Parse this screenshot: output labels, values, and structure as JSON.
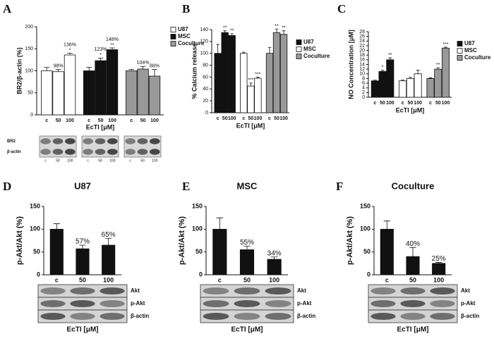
{
  "chart_data": [
    {
      "type": "bar",
      "label": "A",
      "ylabel": "BR2/β-actin (%)",
      "xlabel": "EcTI [μM]",
      "categories": [
        "c",
        "50",
        "100"
      ],
      "ylim": [
        0,
        200
      ],
      "yticks": [
        0,
        50,
        100,
        150,
        200
      ],
      "legend": "right",
      "series": [
        {
          "name": "U87",
          "color": "#ffffff",
          "values": [
            100,
            98,
            136
          ],
          "errors": [
            8,
            5,
            4
          ],
          "value_labels": [
            null,
            "98%",
            "136%"
          ],
          "markers": [
            null,
            null,
            "*"
          ]
        },
        {
          "name": "MSC",
          "color": "#111111",
          "values": [
            100,
            123,
            148
          ],
          "errors": [
            8,
            6,
            4
          ],
          "value_labels": [
            null,
            "123%",
            "148%"
          ],
          "markers": [
            null,
            "*",
            "**"
          ]
        },
        {
          "name": "Coculture",
          "color": "#999999",
          "values": [
            100,
            104,
            88
          ],
          "errors": [
            3,
            6,
            15
          ],
          "value_labels": [
            null,
            "104%",
            "88%"
          ]
        }
      ],
      "blot_labels": [
        "BR2",
        "β-actin"
      ]
    },
    {
      "type": "bar",
      "label": "B",
      "ylabel": "% Calcium release",
      "xlabel": "EcTI [μM]",
      "categories": [
        "c",
        "50",
        "100"
      ],
      "ylim": [
        0,
        140
      ],
      "yticks": [
        0,
        20,
        40,
        60,
        80,
        100,
        120,
        140
      ],
      "legend": "right",
      "series": [
        {
          "name": "U87",
          "color": "#111111",
          "values": [
            100,
            135,
            130
          ],
          "errors": [
            15,
            3,
            3
          ],
          "markers": [
            null,
            "**",
            "**"
          ]
        },
        {
          "name": "MSC",
          "color": "#ffffff",
          "values": [
            100,
            45,
            58
          ],
          "errors": [
            2,
            5,
            2
          ],
          "markers": [
            null,
            "***",
            "***"
          ]
        },
        {
          "name": "Coculture",
          "color": "#999999",
          "values": [
            100,
            135,
            132
          ],
          "errors": [
            10,
            6,
            6
          ],
          "markers": [
            null,
            "**",
            "**"
          ]
        }
      ]
    },
    {
      "type": "bar",
      "label": "C",
      "ylabel": "NO Concentration [μM]",
      "xlabel": "EcTI [μM]",
      "categories": [
        "c",
        "50",
        "100"
      ],
      "ylim": [
        0,
        28
      ],
      "yticks": [
        0,
        2,
        4,
        6,
        8,
        10,
        12,
        14,
        16,
        18,
        20,
        22,
        24,
        26,
        28
      ],
      "legend": "right",
      "series": [
        {
          "name": "U87",
          "color": "#111111",
          "values": [
            7,
            11,
            16
          ],
          "errors": [
            0.3,
            0.5,
            0.8
          ],
          "markers": [
            null,
            "*",
            "**"
          ]
        },
        {
          "name": "MSC",
          "color": "#ffffff",
          "values": [
            7,
            8,
            10
          ],
          "errors": [
            0.3,
            0.5,
            1.5
          ]
        },
        {
          "name": "Coculture",
          "color": "#999999",
          "values": [
            8,
            12,
            21
          ],
          "errors": [
            0.3,
            0.6,
            0.4
          ],
          "markers": [
            null,
            "**",
            "***"
          ]
        }
      ]
    },
    {
      "type": "bar",
      "label": "D",
      "title": "U87",
      "ylabel": "p-Akt/Akt (%)",
      "xlabel": "EcTI [μM]",
      "categories": [
        "c",
        "50",
        "100"
      ],
      "values": [
        100,
        57,
        65
      ],
      "errors": [
        12,
        8,
        15
      ],
      "value_labels": [
        null,
        "57%",
        "65%"
      ],
      "color": "#111111",
      "ylim": [
        0,
        150
      ],
      "yticks": [
        0,
        50,
        100,
        150
      ],
      "blot_labels": [
        "Akt",
        "p-Akt",
        "β-actin"
      ]
    },
    {
      "type": "bar",
      "label": "E",
      "title": "MSC",
      "ylabel": "p-Akt/Akt (%)",
      "xlabel": "EcTI [μM]",
      "categories": [
        "c",
        "50",
        "100"
      ],
      "values": [
        100,
        55,
        34
      ],
      "errors": [
        25,
        8,
        5
      ],
      "value_labels": [
        null,
        "55%",
        "34%"
      ],
      "color": "#111111",
      "ylim": [
        0,
        150
      ],
      "yticks": [
        0,
        50,
        100,
        150
      ],
      "blot_labels": [
        "Akt",
        "p-Akt",
        "β-actin"
      ]
    },
    {
      "type": "bar",
      "label": "F",
      "title": "Coculture",
      "ylabel": "p-Akt/Akt (%)",
      "xlabel": "EcTI [μM]",
      "categories": [
        "c",
        "50",
        "100"
      ],
      "values": [
        100,
        40,
        25
      ],
      "errors": [
        18,
        20,
        2
      ],
      "value_labels": [
        null,
        "40%",
        "25%"
      ],
      "color": "#111111",
      "ylim": [
        0,
        150
      ],
      "yticks": [
        0,
        50,
        100,
        150
      ],
      "blot_labels": [
        "Akt",
        "p-Akt",
        "β-actin"
      ]
    }
  ]
}
